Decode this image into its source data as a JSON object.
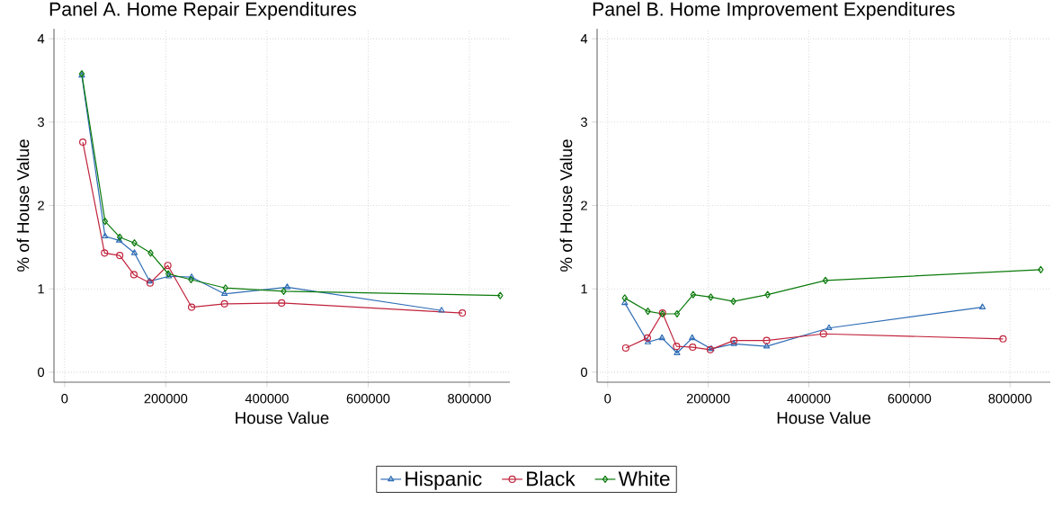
{
  "chart_data": [
    {
      "type": "line",
      "title": "Panel A. Home Repair Expenditures",
      "xlabel": "House Value",
      "ylabel": "% of House Value",
      "xlim": [
        -21000,
        880000
      ],
      "ylim": [
        -0.12,
        4.12
      ],
      "xticks": [
        0,
        200000,
        400000,
        600000,
        800000
      ],
      "yticks": [
        0,
        1,
        2,
        3,
        4
      ],
      "grid": true,
      "legend": "bottom",
      "series": [
        {
          "name": "Hispanic",
          "color": "#2f6db5",
          "marker": "triangle",
          "x": [
            34000,
            80000,
            108000,
            138000,
            168000,
            206000,
            251000,
            316000,
            440000,
            745000
          ],
          "values": [
            3.56,
            1.63,
            1.58,
            1.43,
            1.09,
            1.15,
            1.14,
            0.94,
            1.02,
            0.74
          ]
        },
        {
          "name": "Black",
          "color": "#c0223b",
          "marker": "circle",
          "x": [
            36000,
            79000,
            109000,
            137000,
            169000,
            204000,
            251000,
            316000,
            429000,
            786000
          ],
          "values": [
            2.76,
            1.43,
            1.4,
            1.17,
            1.07,
            1.28,
            0.78,
            0.82,
            0.83,
            0.71
          ]
        },
        {
          "name": "White",
          "color": "#0a7a0a",
          "marker": "diamond",
          "x": [
            34000,
            80000,
            109000,
            138000,
            170000,
            205000,
            250000,
            318000,
            433000,
            861000
          ],
          "values": [
            3.58,
            1.81,
            1.62,
            1.55,
            1.43,
            1.18,
            1.11,
            1.01,
            0.97,
            0.92
          ]
        }
      ]
    },
    {
      "type": "line",
      "title": "Panel B. Home Improvement Expenditures",
      "xlabel": "House Value",
      "ylabel": "% of House Value",
      "xlim": [
        -21000,
        880000
      ],
      "ylim": [
        -0.12,
        4.12
      ],
      "xticks": [
        0,
        200000,
        400000,
        600000,
        800000
      ],
      "yticks": [
        0,
        1,
        2,
        3,
        4
      ],
      "grid": true,
      "legend": false,
      "series": [
        {
          "color": "#2f6db5",
          "marker": "triangle",
          "x": [
            34000,
            80000,
            108000,
            138000,
            168000,
            206000,
            251000,
            316000,
            440000,
            745000
          ],
          "values": [
            0.83,
            0.36,
            0.41,
            0.23,
            0.41,
            0.28,
            0.34,
            0.31,
            0.53,
            0.78
          ]
        },
        {
          "color": "#c0223b",
          "marker": "circle",
          "x": [
            36000,
            79000,
            109000,
            137000,
            169000,
            204000,
            251000,
            316000,
            429000,
            786000
          ],
          "values": [
            0.29,
            0.41,
            0.71,
            0.31,
            0.3,
            0.27,
            0.38,
            0.38,
            0.46,
            0.4
          ]
        },
        {
          "color": "#0a7a0a",
          "marker": "diamond",
          "x": [
            34000,
            80000,
            109000,
            138000,
            170000,
            205000,
            250000,
            318000,
            433000,
            861000
          ],
          "values": [
            0.89,
            0.73,
            0.7,
            0.7,
            0.93,
            0.9,
            0.85,
            0.93,
            1.1,
            1.23
          ]
        }
      ]
    }
  ]
}
